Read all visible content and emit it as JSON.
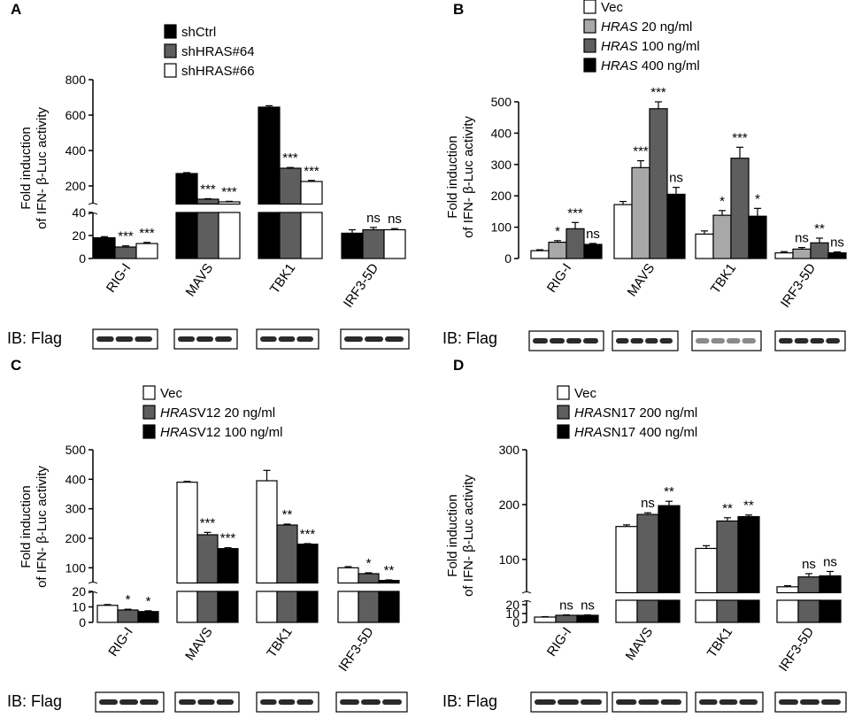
{
  "chart_data": [
    {
      "panel": "A",
      "type": "bar",
      "ylabel_line1": "Fold induction",
      "ylabel_line2": "of IFN- β-Luc activity",
      "categories": [
        "RIG-I",
        "MAVS",
        "TBK1",
        "IRF3-5D"
      ],
      "axis_break": true,
      "lower_ylim": [
        0,
        40
      ],
      "lower_ticks": [
        0,
        20,
        40
      ],
      "upper_ylim": [
        100,
        800
      ],
      "upper_ticks": [
        200,
        400,
        600,
        800
      ],
      "series": [
        {
          "name": "shCtrl",
          "color": "#000000",
          "values": [
            18,
            270,
            645,
            22
          ],
          "errors": [
            1,
            5,
            8,
            3
          ]
        },
        {
          "name": "shHRAS#64",
          "color": "#5e5e5e",
          "values": [
            10,
            125,
            300,
            25
          ],
          "errors": [
            1,
            3,
            4,
            2
          ]
        },
        {
          "name": "shHRAS#66",
          "color": "#ffffff",
          "values": [
            13,
            110,
            225,
            25
          ],
          "errors": [
            1,
            3,
            6,
            1
          ]
        }
      ],
      "annotations": [
        [
          "",
          "***",
          "***"
        ],
        [
          "",
          "***",
          "***"
        ],
        [
          "",
          "***",
          "***"
        ],
        [
          "",
          "ns",
          "ns"
        ]
      ],
      "blot_label": "IB: Flag"
    },
    {
      "panel": "B",
      "type": "bar",
      "ylabel_line1": "Fold induction",
      "ylabel_line2": "of IFN- β-Luc activity",
      "categories": [
        "RIG-I",
        "MAVS",
        "TBK1",
        "IRF3-5D"
      ],
      "axis_break": false,
      "ylim": [
        0,
        500
      ],
      "ticks": [
        0,
        100,
        200,
        300,
        400,
        500
      ],
      "series": [
        {
          "name": "Vec",
          "italic_prefix": "",
          "color": "#ffffff",
          "values": [
            25,
            172,
            78,
            18
          ],
          "errors": [
            3,
            10,
            10,
            4
          ]
        },
        {
          "name": " 20 ng/ml",
          "italic_prefix": "HRAS",
          "color": "#a8a8a8",
          "values": [
            52,
            290,
            138,
            30
          ],
          "errors": [
            5,
            22,
            15,
            5
          ]
        },
        {
          "name": " 100 ng/ml",
          "italic_prefix": "HRAS",
          "color": "#5e5e5e",
          "values": [
            95,
            478,
            320,
            50
          ],
          "errors": [
            20,
            22,
            35,
            15
          ]
        },
        {
          "name": " 400 ng/ml",
          "italic_prefix": "HRAS",
          "color": "#000000",
          "values": [
            45,
            205,
            135,
            18
          ],
          "errors": [
            3,
            22,
            25,
            3
          ]
        }
      ],
      "annotations": [
        [
          "",
          "*",
          "***",
          "ns"
        ],
        [
          "",
          "***",
          "***",
          "ns"
        ],
        [
          "",
          "*",
          "***",
          "*"
        ],
        [
          "",
          "ns",
          "**",
          "ns"
        ]
      ],
      "blot_label": "IB: Flag"
    },
    {
      "panel": "C",
      "type": "bar",
      "ylabel_line1": "Fold induction",
      "ylabel_line2": "of IFN- β-Luc activity",
      "categories": [
        "RIG-I",
        "MAVS",
        "TBK1",
        "IRF3-5D"
      ],
      "axis_break": true,
      "lower_ylim": [
        0,
        20
      ],
      "lower_ticks": [
        0,
        10,
        20
      ],
      "upper_ylim": [
        50,
        500
      ],
      "upper_ticks": [
        100,
        200,
        300,
        400,
        500
      ],
      "series": [
        {
          "name": "Vec",
          "italic_prefix": "",
          "color": "#ffffff",
          "values": [
            11,
            390,
            395,
            100
          ],
          "errors": [
            0.5,
            3,
            35,
            4
          ]
        },
        {
          "name": "V12 20 ng/ml",
          "italic_prefix": "HRAS",
          "color": "#5e5e5e",
          "values": [
            8,
            212,
            245,
            80
          ],
          "errors": [
            0.5,
            8,
            3,
            3
          ]
        },
        {
          "name": "V12 100 ng/ml",
          "italic_prefix": "HRAS",
          "color": "#000000",
          "values": [
            7,
            165,
            180,
            57
          ],
          "errors": [
            0.5,
            3,
            2,
            2
          ]
        }
      ],
      "annotations": [
        [
          "",
          "*",
          "*"
        ],
        [
          "",
          "***",
          "***"
        ],
        [
          "",
          "**",
          "***"
        ],
        [
          "",
          "*",
          "**"
        ]
      ],
      "blot_label": "IB: Flag"
    },
    {
      "panel": "D",
      "type": "bar",
      "ylabel_line1": "Fold induction",
      "ylabel_line2": "of IFN- β-Luc activity",
      "categories": [
        "RIG-I",
        "MAVS",
        "TBK1",
        "IRF3-5D"
      ],
      "axis_break": true,
      "lower_ylim": [
        0,
        25
      ],
      "lower_ticks": [
        0,
        10,
        20
      ],
      "upper_ylim": [
        40,
        300
      ],
      "upper_ticks": [
        100,
        200,
        300
      ],
      "series": [
        {
          "name": "Vec",
          "italic_prefix": "",
          "color": "#ffffff",
          "values": [
            6,
            160,
            120,
            50
          ],
          "errors": [
            0.5,
            3,
            5,
            2
          ]
        },
        {
          "name": "N17 200 ng/ml",
          "italic_prefix": "HRAS",
          "color": "#5e5e5e",
          "values": [
            8,
            182,
            170,
            68
          ],
          "errors": [
            0.5,
            3,
            6,
            6
          ]
        },
        {
          "name": "N17 400 ng/ml",
          "italic_prefix": "HRAS",
          "color": "#000000",
          "values": [
            8,
            198,
            178,
            70
          ],
          "errors": [
            0.5,
            8,
            3,
            8
          ]
        }
      ],
      "annotations": [
        [
          "",
          "ns",
          "ns"
        ],
        [
          "",
          "ns",
          "**"
        ],
        [
          "",
          "**",
          "**"
        ],
        [
          "",
          "ns",
          "ns"
        ]
      ],
      "blot_label": "IB: Flag"
    }
  ]
}
